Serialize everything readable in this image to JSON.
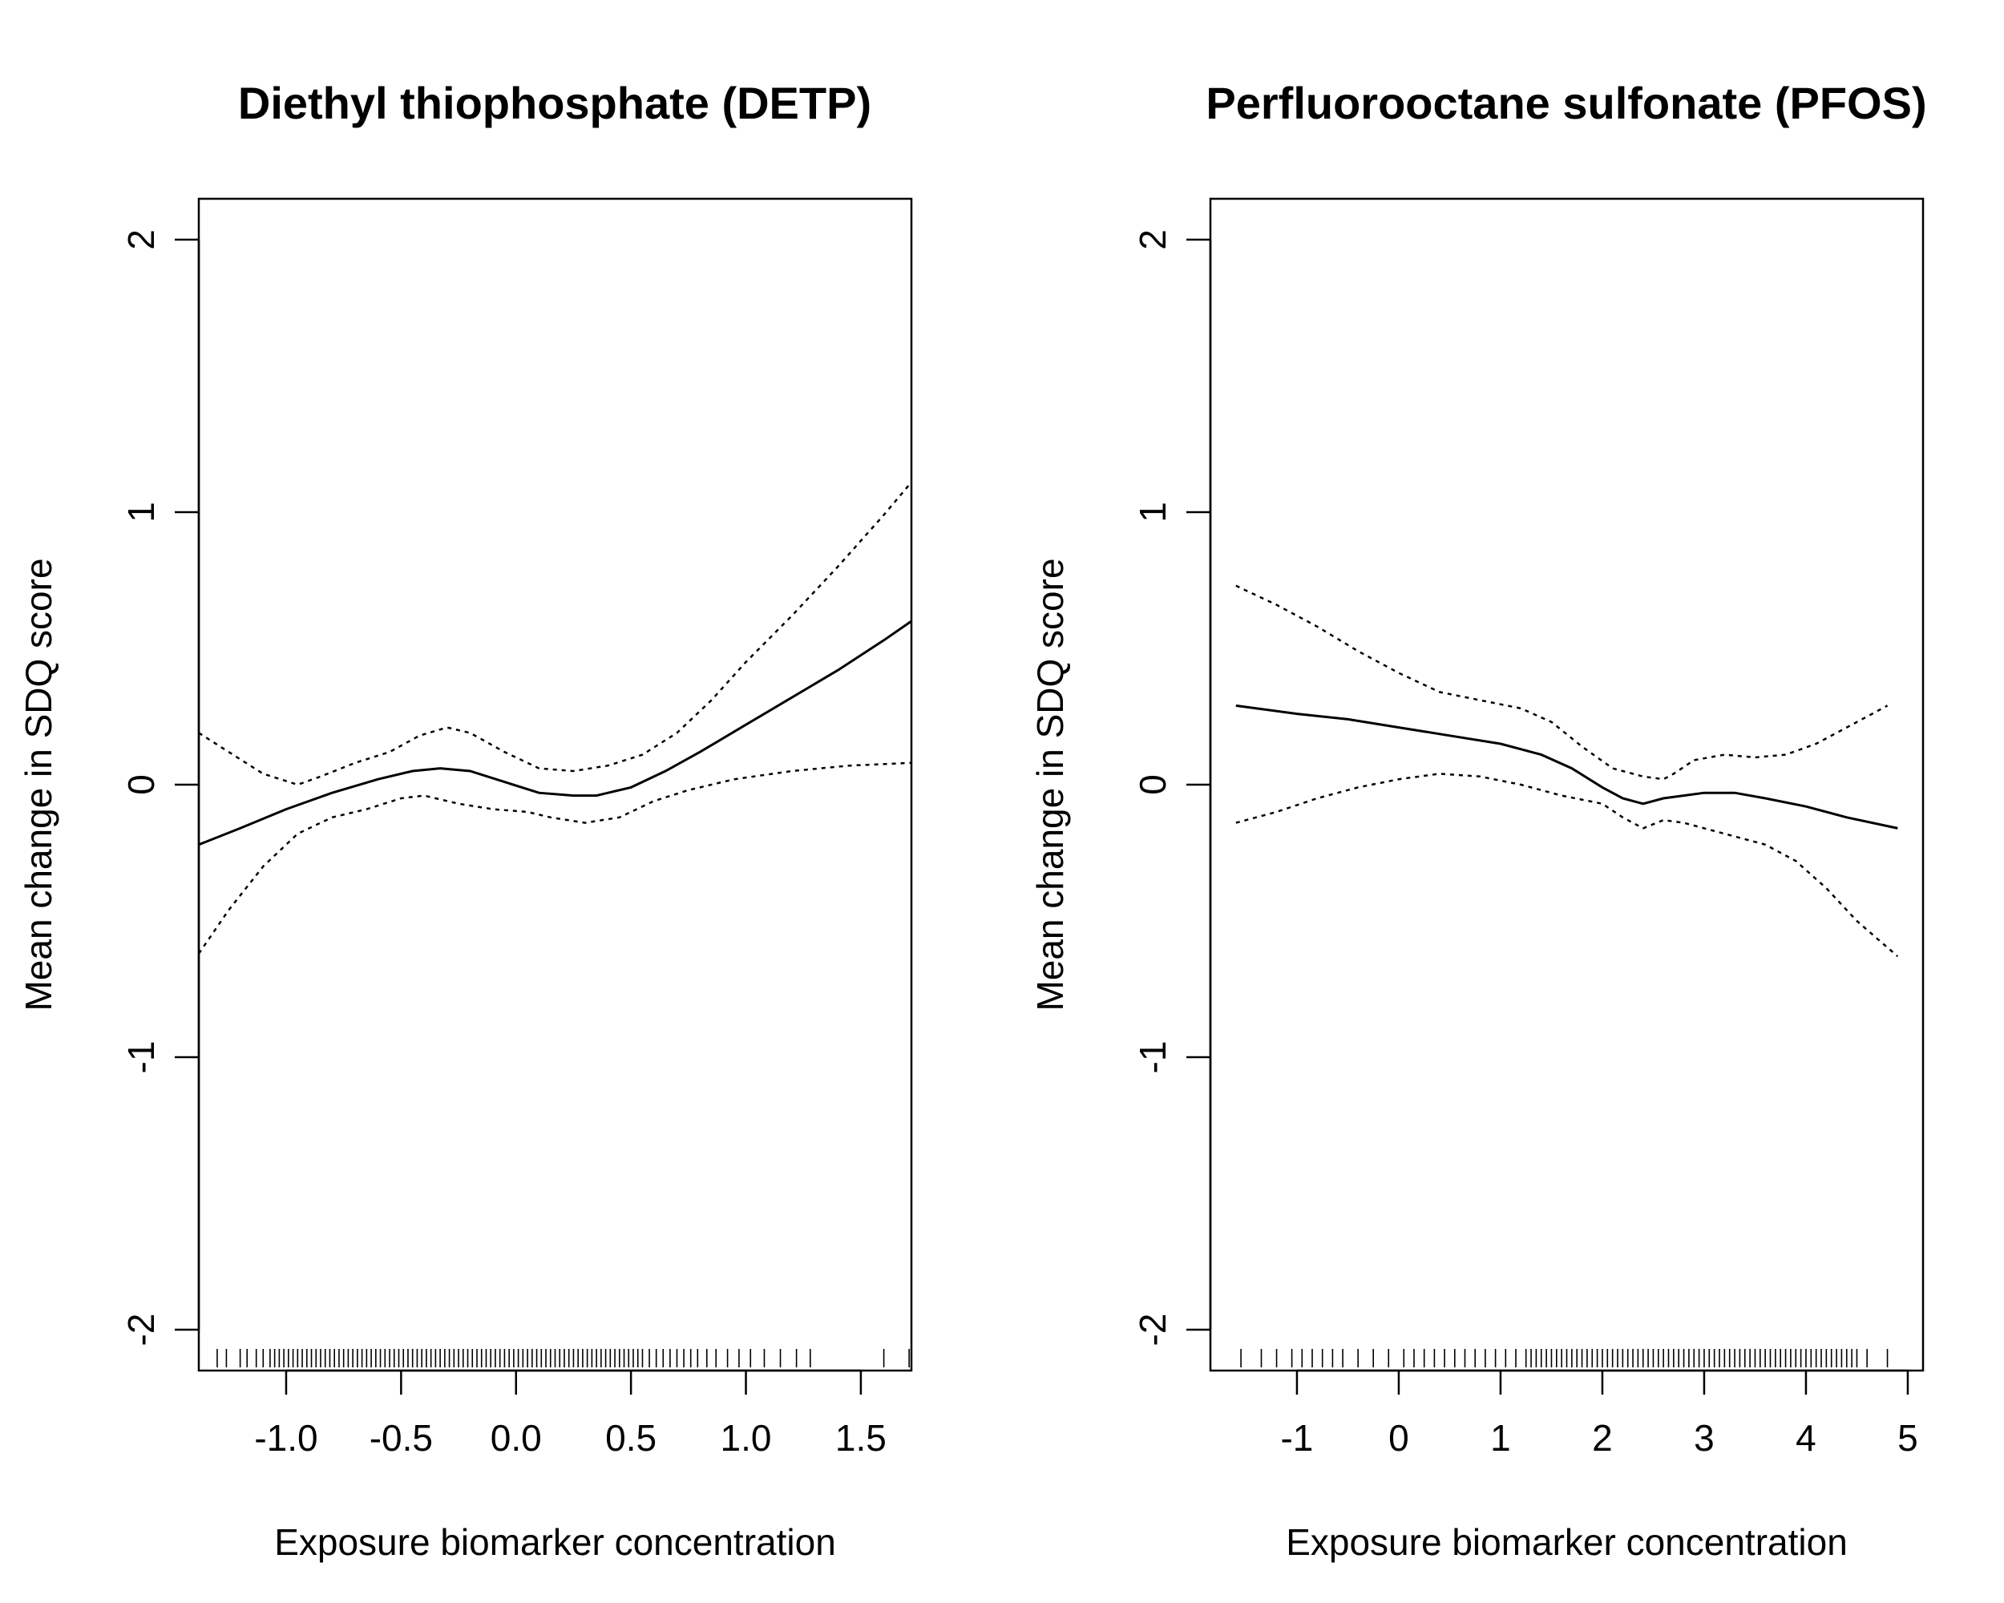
{
  "chart_data": [
    {
      "type": "line",
      "title": "Diethyl thiophosphate (DETP)",
      "xlabel": "Exposure biomarker concentration",
      "ylabel": "Mean change in SDQ score",
      "xlim": [
        -1.38,
        1.72
      ],
      "ylim": [
        -2.15,
        2.15
      ],
      "xticks": [
        -1.0,
        -0.5,
        0.0,
        0.5,
        1.0,
        1.5
      ],
      "xtick_labels": [
        "-1.0",
        "-0.5",
        "0.0",
        "0.5",
        "1.0",
        "1.5"
      ],
      "yticks": [
        -2,
        -1,
        0,
        1,
        2
      ],
      "ytick_labels": [
        "-2",
        "-1",
        "0",
        "1",
        "2"
      ],
      "grid": false,
      "series": [
        {
          "style": "solid",
          "x": [
            -1.38,
            -1.2,
            -1.0,
            -0.8,
            -0.6,
            -0.45,
            -0.33,
            -0.2,
            -0.05,
            0.1,
            0.25,
            0.35,
            0.5,
            0.65,
            0.8,
            1.0,
            1.2,
            1.4,
            1.6,
            1.72
          ],
          "y": [
            -0.22,
            -0.16,
            -0.09,
            -0.03,
            0.02,
            0.05,
            0.06,
            0.05,
            0.01,
            -0.03,
            -0.04,
            -0.04,
            -0.01,
            0.05,
            0.12,
            0.22,
            0.32,
            0.42,
            0.53,
            0.6
          ]
        },
        {
          "style": "dotted",
          "x": [
            -1.38,
            -1.25,
            -1.1,
            -0.95,
            -0.85,
            -0.7,
            -0.55,
            -0.42,
            -0.3,
            -0.2,
            -0.05,
            0.1,
            0.25,
            0.4,
            0.55,
            0.7,
            0.85,
            1.0,
            1.2,
            1.4,
            1.6,
            1.72
          ],
          "y": [
            0.19,
            0.12,
            0.04,
            0.0,
            0.03,
            0.08,
            0.12,
            0.18,
            0.21,
            0.19,
            0.12,
            0.06,
            0.05,
            0.07,
            0.11,
            0.19,
            0.31,
            0.45,
            0.62,
            0.8,
            0.99,
            1.11
          ]
        },
        {
          "style": "dotted",
          "x": [
            -1.38,
            -1.25,
            -1.1,
            -0.95,
            -0.8,
            -0.65,
            -0.5,
            -0.4,
            -0.25,
            -0.1,
            0.05,
            0.15,
            0.3,
            0.45,
            0.6,
            0.75,
            0.95,
            1.2,
            1.45,
            1.72
          ],
          "y": [
            -0.62,
            -0.46,
            -0.3,
            -0.18,
            -0.12,
            -0.09,
            -0.05,
            -0.04,
            -0.07,
            -0.09,
            -0.1,
            -0.12,
            -0.14,
            -0.12,
            -0.06,
            -0.02,
            0.02,
            0.05,
            0.07,
            0.08
          ]
        }
      ],
      "rug": [
        -1.3,
        -1.26,
        -1.2,
        -1.17,
        -1.13,
        -1.1,
        -1.07,
        -1.05,
        -1.03,
        -1.01,
        -0.99,
        -0.97,
        -0.95,
        -0.93,
        -0.91,
        -0.89,
        -0.87,
        -0.85,
        -0.83,
        -0.81,
        -0.79,
        -0.77,
        -0.75,
        -0.73,
        -0.71,
        -0.69,
        -0.67,
        -0.65,
        -0.63,
        -0.61,
        -0.59,
        -0.57,
        -0.55,
        -0.53,
        -0.51,
        -0.49,
        -0.47,
        -0.45,
        -0.43,
        -0.41,
        -0.39,
        -0.37,
        -0.35,
        -0.33,
        -0.31,
        -0.29,
        -0.27,
        -0.25,
        -0.23,
        -0.21,
        -0.19,
        -0.17,
        -0.15,
        -0.13,
        -0.11,
        -0.09,
        -0.07,
        -0.05,
        -0.03,
        -0.01,
        0.01,
        0.03,
        0.05,
        0.07,
        0.09,
        0.11,
        0.13,
        0.15,
        0.17,
        0.19,
        0.21,
        0.23,
        0.25,
        0.27,
        0.29,
        0.31,
        0.33,
        0.35,
        0.37,
        0.39,
        0.41,
        0.43,
        0.45,
        0.47,
        0.49,
        0.51,
        0.53,
        0.55,
        0.58,
        0.61,
        0.64,
        0.67,
        0.7,
        0.73,
        0.76,
        0.79,
        0.83,
        0.87,
        0.92,
        0.97,
        1.02,
        1.08,
        1.15,
        1.22,
        1.28,
        1.6,
        1.71
      ]
    },
    {
      "type": "line",
      "title": "Perfluorooctane sulfonate (PFOS)",
      "xlabel": "Exposure biomarker concentration",
      "ylabel": "Mean change in SDQ score",
      "xlim": [
        -1.85,
        5.15
      ],
      "ylim": [
        -2.15,
        2.15
      ],
      "xticks": [
        -1,
        0,
        1,
        2,
        3,
        4,
        5
      ],
      "xtick_labels": [
        "-1",
        "0",
        "1",
        "2",
        "3",
        "4",
        "5"
      ],
      "yticks": [
        -2,
        -1,
        0,
        1,
        2
      ],
      "ytick_labels": [
        "-2",
        "-1",
        "0",
        "1",
        "2"
      ],
      "grid": false,
      "series": [
        {
          "style": "solid",
          "x": [
            -1.6,
            -1.0,
            -0.5,
            0.0,
            0.5,
            1.0,
            1.4,
            1.7,
            2.0,
            2.2,
            2.4,
            2.6,
            2.8,
            3.0,
            3.3,
            3.6,
            4.0,
            4.4,
            4.9
          ],
          "y": [
            0.29,
            0.26,
            0.24,
            0.21,
            0.18,
            0.15,
            0.11,
            0.06,
            -0.01,
            -0.05,
            -0.07,
            -0.05,
            -0.04,
            -0.03,
            -0.03,
            -0.05,
            -0.08,
            -0.12,
            -0.16
          ]
        },
        {
          "style": "dotted",
          "x": [
            -1.6,
            -1.2,
            -0.8,
            -0.4,
            0.0,
            0.4,
            0.8,
            1.2,
            1.5,
            1.8,
            2.1,
            2.4,
            2.6,
            2.7,
            2.9,
            3.2,
            3.5,
            3.8,
            4.1,
            4.4,
            4.8
          ],
          "y": [
            0.73,
            0.66,
            0.58,
            0.49,
            0.41,
            0.34,
            0.31,
            0.28,
            0.23,
            0.14,
            0.06,
            0.03,
            0.02,
            0.04,
            0.09,
            0.11,
            0.1,
            0.11,
            0.15,
            0.21,
            0.29
          ]
        },
        {
          "style": "dotted",
          "x": [
            -1.6,
            -1.2,
            -0.8,
            -0.4,
            0.0,
            0.4,
            0.8,
            1.2,
            1.6,
            2.0,
            2.2,
            2.4,
            2.6,
            2.8,
            3.0,
            3.3,
            3.6,
            3.9,
            4.2,
            4.5,
            4.9
          ],
          "y": [
            -0.14,
            -0.1,
            -0.05,
            -0.01,
            0.02,
            0.04,
            0.03,
            0.0,
            -0.04,
            -0.07,
            -0.12,
            -0.16,
            -0.13,
            -0.14,
            -0.16,
            -0.19,
            -0.22,
            -0.28,
            -0.38,
            -0.5,
            -0.63
          ]
        }
      ],
      "rug": [
        -1.55,
        -1.35,
        -1.2,
        -1.05,
        -0.95,
        -0.85,
        -0.75,
        -0.65,
        -0.55,
        -0.4,
        -0.25,
        -0.1,
        0.05,
        0.15,
        0.25,
        0.35,
        0.45,
        0.55,
        0.65,
        0.75,
        0.85,
        0.95,
        1.05,
        1.15,
        1.25,
        1.3,
        1.35,
        1.4,
        1.45,
        1.5,
        1.55,
        1.6,
        1.65,
        1.7,
        1.75,
        1.8,
        1.85,
        1.9,
        1.95,
        2.0,
        2.05,
        2.1,
        2.15,
        2.2,
        2.25,
        2.3,
        2.35,
        2.4,
        2.45,
        2.5,
        2.55,
        2.6,
        2.65,
        2.7,
        2.75,
        2.8,
        2.85,
        2.9,
        2.95,
        3.0,
        3.05,
        3.1,
        3.15,
        3.2,
        3.25,
        3.3,
        3.35,
        3.4,
        3.45,
        3.5,
        3.55,
        3.6,
        3.65,
        3.7,
        3.75,
        3.8,
        3.85,
        3.9,
        3.95,
        4.0,
        4.05,
        4.1,
        4.15,
        4.2,
        4.25,
        4.3,
        4.35,
        4.4,
        4.45,
        4.5,
        4.6,
        4.8
      ]
    }
  ]
}
